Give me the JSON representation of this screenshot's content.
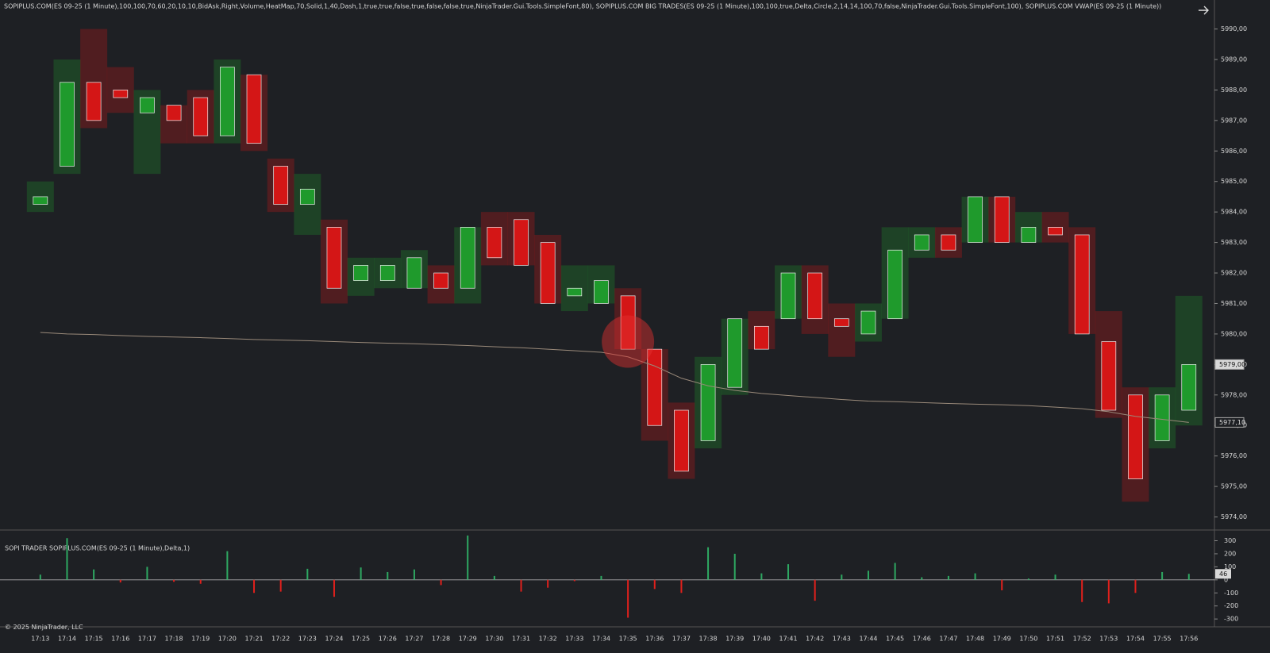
{
  "footer": "© 2025 NinjaTrader, LLC",
  "chart_data": [
    {
      "type": "candlestick",
      "title": "SOPIPLUS.COM(ES 09-25 (1 Minute),100,100,70,60,20,10,10,BidAsk,Right,Volume,HeatMap,70,Solid,1,40,Dash,1,true,true,false,true,false,false,true,NinjaTrader.Gui.Tools.SimpleFont,80), SOPIPLUS.COM BIG TRADES(ES 09-25 (1 Minute),100,100,true,Delta,Circle,2,14,14,100,70,false,NinjaTrader.Gui.Tools.SimpleFont,100), SOPIPLUS.COM VWAP(ES 09-25 (1 Minute))",
      "categories": [
        "17:13",
        "17:14",
        "17:15",
        "17:16",
        "17:17",
        "17:18",
        "17:19",
        "17:20",
        "17:21",
        "17:22",
        "17:23",
        "17:24",
        "17:25",
        "17:26",
        "17:27",
        "17:28",
        "17:29",
        "17:30",
        "17:31",
        "17:32",
        "17:33",
        "17:34",
        "17:35",
        "17:36",
        "17:37",
        "17:38",
        "17:39",
        "17:40",
        "17:41",
        "17:42",
        "17:43",
        "17:44",
        "17:45",
        "17:46",
        "17:47",
        "17:48",
        "17:49",
        "17:50",
        "17:51",
        "17:52",
        "17:53",
        "17:54",
        "17:55",
        "17:56"
      ],
      "open": [
        5984.25,
        5985.5,
        5988.25,
        5988.0,
        5987.25,
        5987.5,
        5987.75,
        5986.5,
        5988.5,
        5985.5,
        5984.25,
        5983.5,
        5981.75,
        5981.75,
        5981.5,
        5982.0,
        5981.5,
        5983.5,
        5983.75,
        5983.0,
        5981.25,
        5981.0,
        5981.25,
        5979.5,
        5977.5,
        5976.5,
        5978.25,
        5980.25,
        5980.5,
        5982.0,
        5980.5,
        5980.0,
        5980.5,
        5982.75,
        5983.25,
        5983.0,
        5984.5,
        5983.0,
        5983.5,
        5983.25,
        5979.75,
        5978.0,
        5976.5,
        5977.5
      ],
      "high": [
        5985.0,
        5989.0,
        5990.0,
        5988.75,
        5988.0,
        5987.5,
        5988.0,
        5989.0,
        5988.5,
        5985.75,
        5985.25,
        5983.75,
        5982.5,
        5982.5,
        5982.75,
        5982.25,
        5983.5,
        5984.0,
        5984.0,
        5983.25,
        5982.25,
        5982.25,
        5981.5,
        5979.5,
        5977.75,
        5979.25,
        5980.5,
        5980.75,
        5982.25,
        5982.25,
        5981.0,
        5981.0,
        5983.5,
        5983.5,
        5983.5,
        5984.5,
        5984.5,
        5984.0,
        5984.0,
        5983.5,
        5980.75,
        5978.25,
        5978.25,
        5981.25
      ],
      "low": [
        5984.0,
        5985.25,
        5986.75,
        5987.25,
        5985.25,
        5986.25,
        5986.25,
        5986.25,
        5986.0,
        5984.0,
        5983.25,
        5981.0,
        5981.25,
        5981.5,
        5981.5,
        5981.0,
        5981.0,
        5982.25,
        5982.25,
        5981.0,
        5980.75,
        5981.0,
        5979.5,
        5976.5,
        5975.25,
        5976.25,
        5978.0,
        5979.5,
        5980.5,
        5980.0,
        5979.25,
        5979.75,
        5980.5,
        5982.5,
        5982.5,
        5983.0,
        5983.0,
        5983.0,
        5983.0,
        5980.0,
        5977.25,
        5974.5,
        5976.25,
        5977.0
      ],
      "close": [
        5984.5,
        5988.25,
        5987.0,
        5987.75,
        5987.75,
        5987.0,
        5986.5,
        5988.75,
        5986.25,
        5984.25,
        5984.75,
        5981.5,
        5982.25,
        5982.25,
        5982.5,
        5981.5,
        5983.5,
        5982.5,
        5982.25,
        5981.0,
        5981.5,
        5981.75,
        5979.5,
        5977.0,
        5975.5,
        5979.0,
        5980.5,
        5979.5,
        5982.0,
        5980.5,
        5980.25,
        5980.75,
        5982.75,
        5983.25,
        5982.75,
        5984.5,
        5983.0,
        5983.5,
        5983.25,
        5980.0,
        5977.5,
        5975.25,
        5978.0,
        5979.0
      ],
      "up_color": "#1f9a2c",
      "down_color": "#d41616",
      "vwap": [
        5980.05,
        5980.0,
        5979.98,
        5979.95,
        5979.92,
        5979.9,
        5979.88,
        5979.85,
        5979.82,
        5979.8,
        5979.78,
        5979.75,
        5979.72,
        5979.7,
        5979.68,
        5979.65,
        5979.62,
        5979.58,
        5979.55,
        5979.5,
        5979.45,
        5979.4,
        5979.25,
        5978.95,
        5978.55,
        5978.3,
        5978.15,
        5978.05,
        5977.98,
        5977.92,
        5977.85,
        5977.8,
        5977.78,
        5977.75,
        5977.72,
        5977.7,
        5977.68,
        5977.65,
        5977.6,
        5977.55,
        5977.45,
        5977.3,
        5977.2,
        5977.1
      ],
      "vwap_color": "#9a8a7a",
      "big_trades": [
        {
          "x": "17:35",
          "price": 5979.75
        }
      ],
      "ylim": [
        5973.65,
        5990.95
      ],
      "yticks": [
        {
          "value": 5974,
          "label": "5974,00"
        },
        {
          "value": 5975,
          "label": "5975,00"
        },
        {
          "value": 5976,
          "label": "5976,00"
        },
        {
          "value": 5977,
          "label": "5977,00"
        },
        {
          "value": 5978,
          "label": "5978,00"
        },
        {
          "value": 5979,
          "label": "5979,00"
        },
        {
          "value": 5980,
          "label": "5980,00"
        },
        {
          "value": 5981,
          "label": "5981,00"
        },
        {
          "value": 5982,
          "label": "5982,00"
        },
        {
          "value": 5983,
          "label": "5983,00"
        },
        {
          "value": 5984,
          "label": "5984,00"
        },
        {
          "value": 5985,
          "label": "5985,00"
        },
        {
          "value": 5986,
          "label": "5986,00"
        },
        {
          "value": 5987,
          "label": "5987,00"
        },
        {
          "value": 5988,
          "label": "5988,00"
        },
        {
          "value": 5989,
          "label": "5989,00"
        },
        {
          "value": 5990,
          "label": "5990,00"
        }
      ],
      "markers": [
        {
          "value": 5979.0,
          "label": "5979,00"
        },
        {
          "value": 5977.1,
          "label": "5977,10"
        }
      ]
    },
    {
      "type": "bar",
      "title": "SOPI TRADER SOPIPLUS.COM(ES 09-25 (1 Minute),Delta,1)",
      "values": [
        40,
        320,
        80,
        -20,
        100,
        -15,
        -30,
        220,
        -100,
        -90,
        85,
        -130,
        95,
        60,
        80,
        -40,
        340,
        30,
        -90,
        -60,
        -10,
        30,
        -290,
        -70,
        -100,
        250,
        200,
        50,
        120,
        -160,
        40,
        70,
        130,
        20,
        30,
        50,
        -80,
        10,
        40,
        -170,
        -180,
        -100,
        60,
        46
      ],
      "up_color": "#2ea862",
      "down_color": "#e0201c",
      "ylim": [
        -360,
        370
      ],
      "yticks": [
        -300,
        -200,
        -100,
        0,
        100,
        200,
        300
      ],
      "marker": 46
    }
  ]
}
